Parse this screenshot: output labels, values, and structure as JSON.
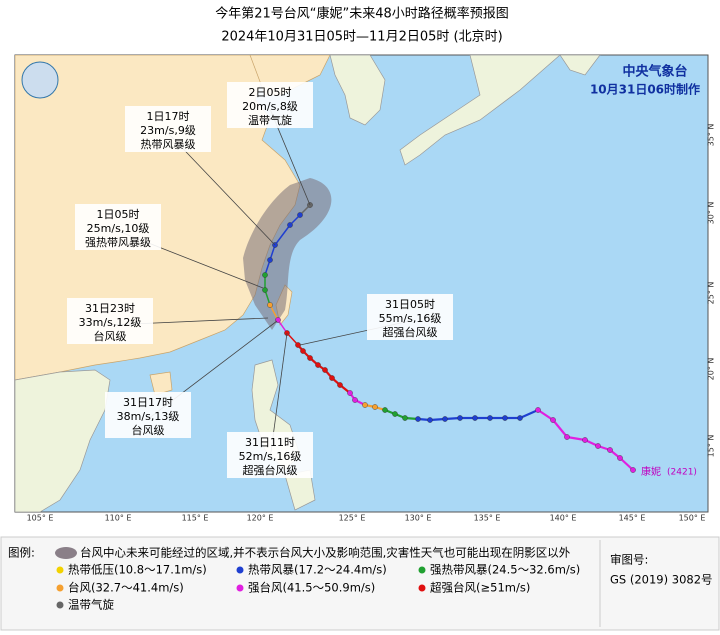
{
  "header": {
    "title": "今年第21号台风“康妮”未来48小时路径概率预报图",
    "subtitle": "2024年10月31日05时—11月2日05时 (北京时)"
  },
  "issuer": {
    "agency": "中央气象台",
    "issued": "10月31日06时制作"
  },
  "annotations": [
    {
      "time": "2日05时",
      "wind": "20m/s,8级",
      "level": "温带气旋"
    },
    {
      "time": "1日17时",
      "wind": "23m/s,9级",
      "level": "热带风暴级"
    },
    {
      "time": "1日05时",
      "wind": "25m/s,10级",
      "level": "强热带风暴级"
    },
    {
      "time": "31日23时",
      "wind": "33m/s,12级",
      "level": "台风级"
    },
    {
      "time": "31日17时",
      "wind": "38m/s,13级",
      "level": "台风级"
    },
    {
      "time": "31日11时",
      "wind": "52m/s,16级",
      "level": "超强台风级"
    },
    {
      "time": "31日05时",
      "wind": "55m/s,16级",
      "level": "超强台风级"
    }
  ],
  "typhoon": {
    "name": "康妮",
    "code": "(2421)"
  },
  "longitude_labels": [
    "105° E",
    "110° E",
    "115° E",
    "120° E",
    "125° E",
    "130° E",
    "135° E",
    "140° E",
    "145° E",
    "150° E"
  ],
  "latitude_labels": [
    "35° N",
    "30° N",
    "25° N",
    "20° N",
    "15° N"
  ],
  "legend": {
    "title": "图例:",
    "cone": "台风中心未来可能经过的区域,并不表示台风大小及影响范围,灾害性天气也可能出现在阴影区以外",
    "items": [
      {
        "label": "热带低压(10.8～17.1m/s)",
        "color": "#f2d200"
      },
      {
        "label": "热带风暴(17.2～24.4m/s)",
        "color": "#1f3fd0"
      },
      {
        "label": "强热带风暴(24.5～32.6m/s)",
        "color": "#21a031"
      },
      {
        "label": "台风(32.7～41.4m/s)",
        "color": "#f5a030"
      },
      {
        "label": "强台风(41.5～50.9m/s)",
        "color": "#e020e0"
      },
      {
        "label": "超强台风(≥51m/s)",
        "color": "#e01010"
      },
      {
        "label": "温带气旋",
        "color": "#666666"
      }
    ]
  },
  "approval": {
    "label": "审图号:",
    "number": "GS (2019) 3082号"
  }
}
